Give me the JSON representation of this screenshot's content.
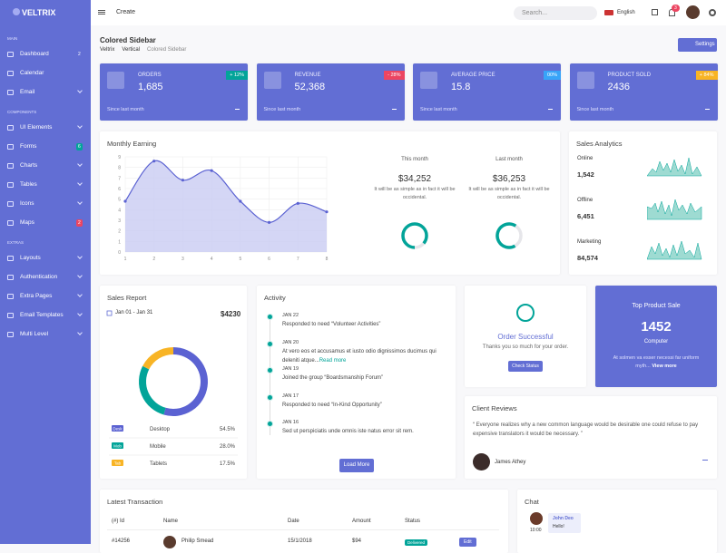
{
  "brand": "VELTRIX",
  "sidebar": [
    {
      "title": "MAIN",
      "items": [
        {
          "label": "Dashboard",
          "badge": "2"
        },
        {
          "label": "Calendar"
        },
        {
          "label": "Email",
          "arrow": true
        }
      ]
    },
    {
      "title": "COMPONENTS",
      "items": [
        {
          "label": "UI Elements",
          "arrow": true
        },
        {
          "label": "Forms",
          "badge": "6",
          "badge_color": "#02a499"
        },
        {
          "label": "Charts",
          "arrow": true
        },
        {
          "label": "Tables",
          "arrow": true
        },
        {
          "label": "Icons",
          "arrow": true
        },
        {
          "label": "Maps",
          "badge": "2",
          "badge_color": "#ec4561"
        }
      ]
    },
    {
      "title": "EXTRAS",
      "items": [
        {
          "label": "Layouts",
          "arrow": true
        },
        {
          "label": "Authentication",
          "arrow": true
        },
        {
          "label": "Extra Pages",
          "arrow": true
        },
        {
          "label": "Email Templates",
          "arrow": true
        },
        {
          "label": "Multi Level",
          "arrow": true
        }
      ]
    }
  ],
  "topbar": {
    "create": "Create",
    "search": "Search...",
    "language": "English",
    "notifications": "3"
  },
  "page": {
    "title": "Colored Sidebar",
    "breadcrumb": [
      "Veltrix",
      "Vertical",
      "Colored Sidebar"
    ],
    "settings": "Settings"
  },
  "stats": [
    {
      "label": "ORDERS",
      "value": "1,685",
      "change": "+ 12%",
      "change_color": "#02a499",
      "footer": "Since last month"
    },
    {
      "label": "REVENUE",
      "value": "52,368",
      "change": "- 28%",
      "change_color": "#ec4561",
      "footer": "Since last month"
    },
    {
      "label": "AVERAGE PRICE",
      "value": "15.8",
      "change": "00%",
      "change_color": "#38a4f8",
      "footer": "Since last month"
    },
    {
      "label": "PRODUCT SOLD",
      "value": "2436",
      "change": "+ 84%",
      "change_color": "#f8b425",
      "footer": "Since last month"
    }
  ],
  "monthly_earning": {
    "title": "Monthly Earning",
    "chart": {
      "type": "line",
      "x": [
        1,
        2,
        3,
        4,
        5,
        6,
        7,
        8
      ],
      "values": [
        4.8,
        8.6,
        6.8,
        7.7,
        4.8,
        2.8,
        4.6,
        3.8
      ],
      "xlim": [
        1,
        8
      ],
      "ylim": [
        0,
        9
      ],
      "xticks": [
        1,
        2,
        3,
        4,
        5,
        6,
        7,
        8
      ],
      "yticks": [
        0,
        1,
        2,
        3,
        4,
        5,
        6,
        7,
        8,
        9
      ],
      "grid": true,
      "color": "#5b62d2"
    },
    "summary": [
      {
        "label": "This month",
        "value": "$34,252",
        "text": "It will be as simple as in fact it will be occidental."
      },
      {
        "label": "Last month",
        "value": "$36,253",
        "text": "It will be as simple as in fact it will be occidental."
      }
    ]
  },
  "sales_analytics": {
    "title": "Sales Analytics",
    "rows": [
      {
        "label": "Online",
        "value": "1,542"
      },
      {
        "label": "Offline",
        "value": "6,451"
      },
      {
        "label": "Marketing",
        "value": "84,574"
      }
    ]
  },
  "sales_report": {
    "title": "Sales Report",
    "range": "Jan 01 - Jan 31",
    "total": "$4230",
    "tags": [
      "Desk",
      "Mob",
      "Tab"
    ],
    "labels": [
      "Desktop",
      "Mobile",
      "Tablets"
    ],
    "values": [
      54.5,
      28.0,
      17.5
    ],
    "value_labels": [
      "54.5%",
      "28.0%",
      "17.5%"
    ],
    "colors": [
      "#5b62d2",
      "#02a499",
      "#f8b425"
    ]
  },
  "activity": {
    "title": "Activity",
    "items": [
      {
        "date": "JAN 22",
        "text": "Responded to need “Volunteer Activities”"
      },
      {
        "date": "JAN 20",
        "text": "At vero eos et accusamus et iusto odio dignissimos ducimus qui deleniti atque...",
        "link": "Read more"
      },
      {
        "date": "JAN 19",
        "text": "Joined the group “Boardsmanship Forum”"
      },
      {
        "date": "JAN 17",
        "text": "Responded to need “In-Kind Opportunity”"
      },
      {
        "date": "JAN 16",
        "text": "Sed ut perspiciatis unde omnis iste natus error sit rem."
      }
    ],
    "button": "Load More"
  },
  "order": {
    "title": "Order Successful",
    "text": "Thanks you so much for your order.",
    "button": "Check Status"
  },
  "top_product": {
    "title": "Top Product Sale",
    "value": "1452",
    "label": "Computer",
    "text": "At solmen va esser necessi far uniform myth...",
    "link": "View more"
  },
  "reviews": {
    "title": "Client Reviews",
    "text": "“ Everyone realizes why a new common language would be desirable one could refuse to pay expensive translators it would be necessary. ”",
    "author": "James Athey"
  },
  "transactions": {
    "title": "Latest Transaction",
    "headers": [
      "(#) Id",
      "Name",
      "Date",
      "Amount",
      "Status"
    ],
    "rows": [
      [
        "#14256",
        "Philip Smead",
        "15/1/2018",
        "$94",
        "Delivered",
        "Edit"
      ]
    ]
  },
  "chat": {
    "title": "Chat",
    "name": "John Deo",
    "message": "Hello!",
    "time": "10:00"
  }
}
